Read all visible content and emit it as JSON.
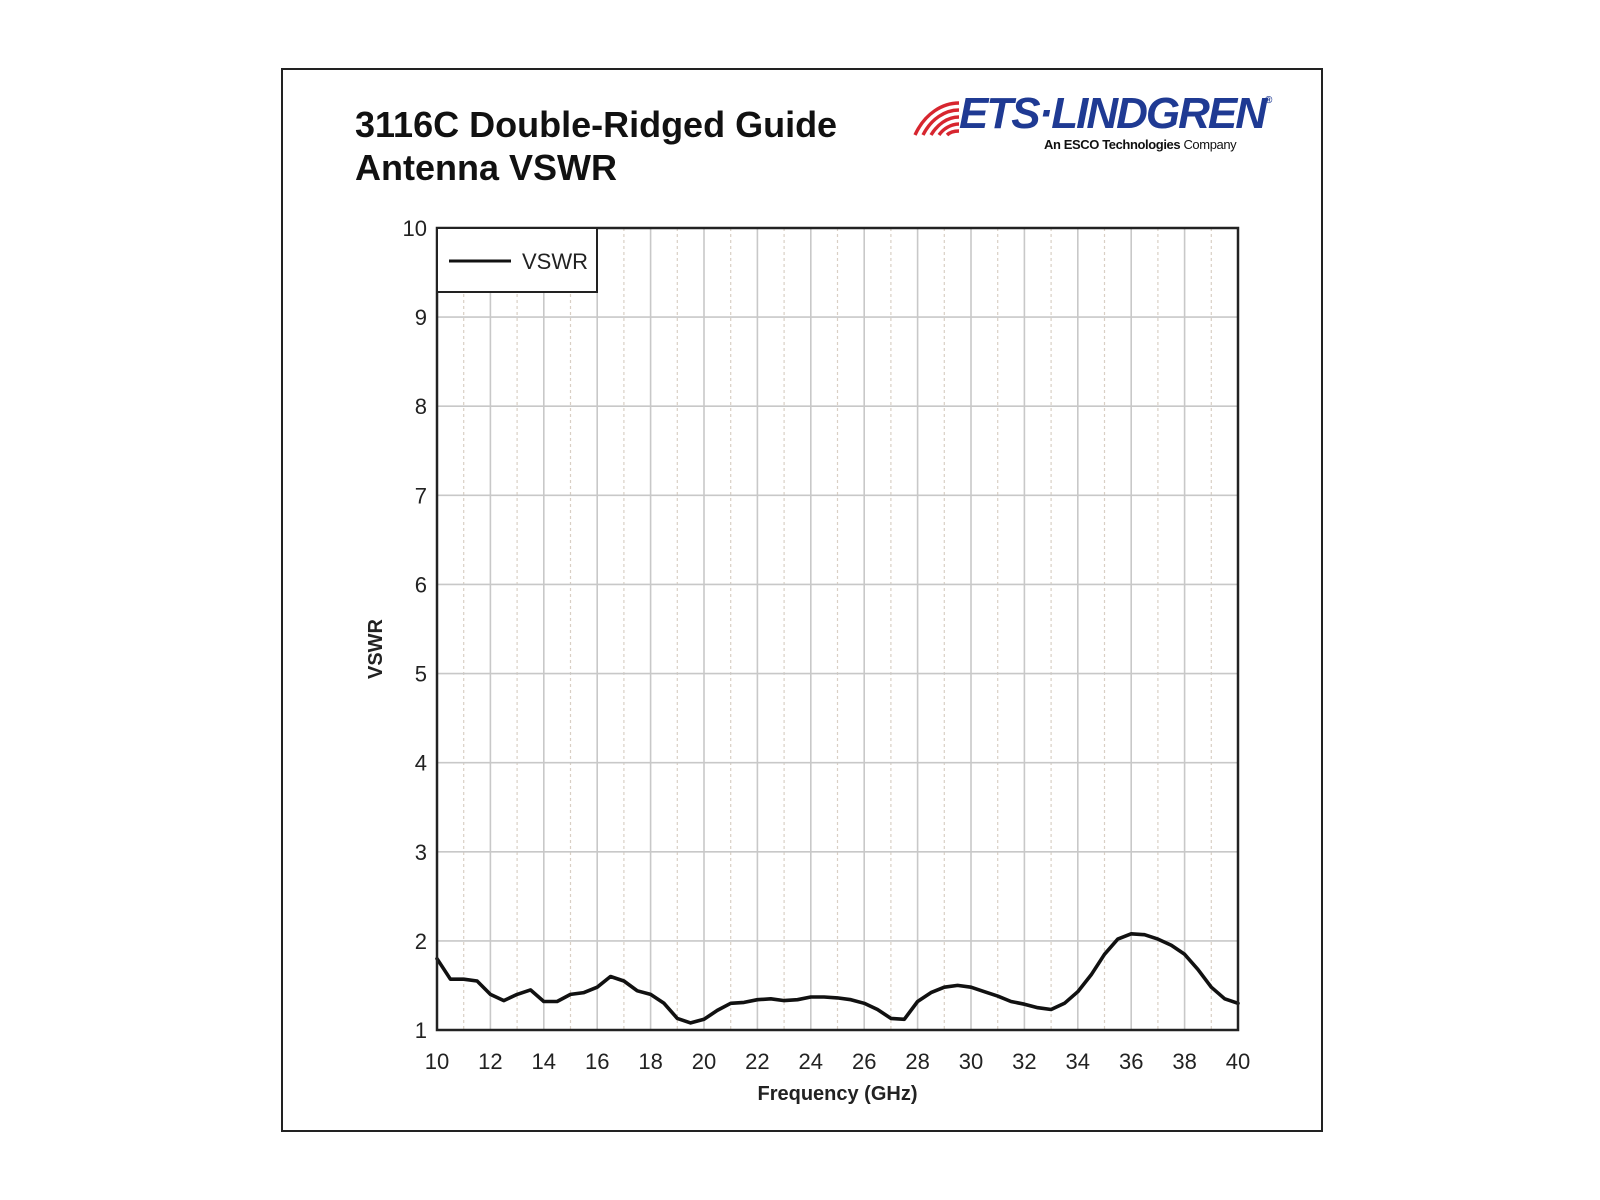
{
  "header": {
    "title_line1": "3116C Double-Ridged Guide",
    "title_line2": "Antenna VSWR"
  },
  "logo": {
    "brand": "ETS·LINDGREN",
    "registered": "®",
    "tagline_bold": "An ESCO Technologies",
    "tagline_rest": " Company",
    "brand_color": "#1f3a93",
    "wave_color": "#d7262f"
  },
  "chart_data": {
    "type": "line",
    "title": "",
    "xlabel": "Frequency (GHz)",
    "ylabel": "VSWR",
    "xlim": [
      10,
      40
    ],
    "ylim": [
      1,
      10
    ],
    "x_ticks": [
      10,
      12,
      14,
      16,
      18,
      20,
      22,
      24,
      26,
      28,
      30,
      32,
      34,
      36,
      38,
      40
    ],
    "y_ticks": [
      1,
      2,
      3,
      4,
      5,
      6,
      7,
      8,
      9,
      10
    ],
    "grid": true,
    "legend_position": "top-left",
    "series": [
      {
        "name": "VSWR",
        "color": "#111111",
        "x": [
          10,
          10.5,
          11,
          11.5,
          12,
          12.5,
          13,
          13.5,
          14,
          14.5,
          15,
          15.5,
          16,
          16.5,
          17,
          17.5,
          18,
          18.5,
          19,
          19.5,
          20,
          20.5,
          21,
          21.5,
          22,
          22.5,
          23,
          23.5,
          24,
          24.5,
          25,
          25.5,
          26,
          26.5,
          27,
          27.5,
          28,
          28.5,
          29,
          29.5,
          30,
          30.5,
          31,
          31.5,
          32,
          32.5,
          33,
          33.5,
          34,
          34.5,
          35,
          35.5,
          36,
          36.5,
          37,
          37.5,
          38,
          38.5,
          39,
          39.5,
          40
        ],
        "values": [
          1.8,
          1.57,
          1.57,
          1.55,
          1.4,
          1.33,
          1.4,
          1.45,
          1.32,
          1.32,
          1.4,
          1.42,
          1.48,
          1.6,
          1.55,
          1.44,
          1.4,
          1.3,
          1.13,
          1.08,
          1.12,
          1.22,
          1.3,
          1.31,
          1.34,
          1.35,
          1.33,
          1.34,
          1.37,
          1.37,
          1.36,
          1.34,
          1.3,
          1.23,
          1.13,
          1.12,
          1.32,
          1.42,
          1.48,
          1.5,
          1.48,
          1.43,
          1.38,
          1.32,
          1.29,
          1.25,
          1.23,
          1.3,
          1.43,
          1.62,
          1.85,
          2.02,
          2.08,
          2.07,
          2.02,
          1.95,
          1.85,
          1.68,
          1.48,
          1.35,
          1.3
        ]
      }
    ]
  }
}
